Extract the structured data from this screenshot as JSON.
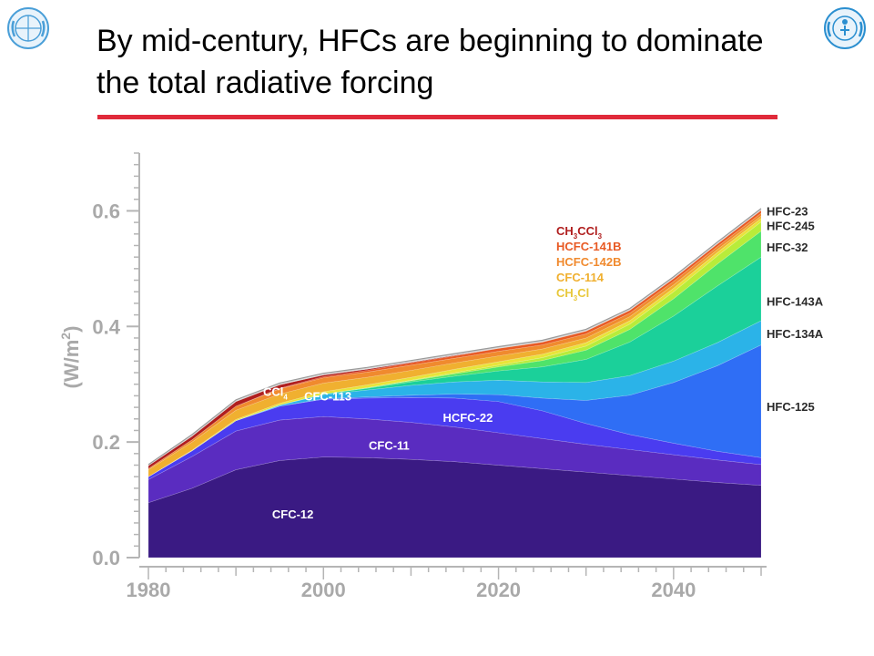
{
  "slide": {
    "title": "By mid-century, HFCs are beginning to dominate the total radiative forcing",
    "accent_color": "#e02a3a",
    "logos": {
      "left": "wmo-emblem-icon",
      "right": "unep-emblem-icon"
    }
  },
  "chart_data": {
    "type": "area",
    "stacked": true,
    "ylabel": "(W/m²)",
    "ylabel_base": "(W/m",
    "ylabel_sup": "2",
    "ylabel_tail": ")",
    "ylim": [
      0,
      0.7
    ],
    "xlim": [
      1980,
      2050
    ],
    "yticks": [
      0.0,
      0.2,
      0.4,
      0.6
    ],
    "ytick_labels": [
      "0.0",
      "0.2",
      "0.4",
      "0.6"
    ],
    "xticks": [
      1980,
      2000,
      2020,
      2040
    ],
    "xtick_labels": [
      "1980",
      "2000",
      "2020",
      "2040"
    ],
    "x": [
      1980,
      1985,
      1990,
      1995,
      2000,
      2005,
      2010,
      2015,
      2020,
      2025,
      2030,
      2035,
      2040,
      2045,
      2050
    ],
    "series": [
      {
        "name": "CFC-12",
        "color": "#3a1a83",
        "values": [
          0.095,
          0.12,
          0.152,
          0.168,
          0.174,
          0.173,
          0.17,
          0.166,
          0.16,
          0.154,
          0.148,
          0.142,
          0.136,
          0.13,
          0.125
        ]
      },
      {
        "name": "CFC-11",
        "color": "#5a2cc0",
        "values": [
          0.04,
          0.055,
          0.067,
          0.07,
          0.07,
          0.067,
          0.064,
          0.06,
          0.056,
          0.052,
          0.048,
          0.045,
          0.042,
          0.039,
          0.036
        ]
      },
      {
        "name": "HCFC-22",
        "color": "#4a3cf0",
        "values": [
          0.005,
          0.01,
          0.018,
          0.024,
          0.03,
          0.036,
          0.043,
          0.05,
          0.054,
          0.048,
          0.036,
          0.026,
          0.02,
          0.015,
          0.012
        ]
      },
      {
        "name": "HFC-125",
        "color": "#2f6ef5",
        "values": [
          0.0,
          0.0,
          0.0,
          0.0,
          0.001,
          0.002,
          0.004,
          0.007,
          0.012,
          0.022,
          0.04,
          0.068,
          0.105,
          0.148,
          0.195
        ]
      },
      {
        "name": "HFC-134A",
        "color": "#2bb3e8",
        "values": [
          0.0,
          0.0,
          0.0,
          0.002,
          0.007,
          0.012,
          0.017,
          0.021,
          0.025,
          0.028,
          0.031,
          0.034,
          0.037,
          0.04,
          0.042
        ]
      },
      {
        "name": "HFC-143A",
        "color": "#1bd09a",
        "values": [
          0.0,
          0.0,
          0.0,
          0.0,
          0.001,
          0.003,
          0.006,
          0.01,
          0.016,
          0.026,
          0.04,
          0.058,
          0.078,
          0.098,
          0.11
        ]
      },
      {
        "name": "HFC-32",
        "color": "#4fe36a",
        "values": [
          0.0,
          0.0,
          0.0,
          0.0,
          0.0,
          0.001,
          0.002,
          0.004,
          0.007,
          0.011,
          0.016,
          0.022,
          0.03,
          0.038,
          0.045
        ]
      },
      {
        "name": "HFC-245",
        "color": "#b9ec3a",
        "values": [
          0.0,
          0.0,
          0.0,
          0.0,
          0.0,
          0.0,
          0.001,
          0.002,
          0.003,
          0.005,
          0.007,
          0.009,
          0.012,
          0.014,
          0.016
        ]
      },
      {
        "name": "HFC-23",
        "color": "#e8e43a",
        "values": [
          0.0,
          0.001,
          0.002,
          0.003,
          0.004,
          0.005,
          0.005,
          0.006,
          0.006,
          0.006,
          0.006,
          0.006,
          0.006,
          0.006,
          0.006
        ]
      },
      {
        "name": "CCl4",
        "color": "#f0b030",
        "values": [
          0.012,
          0.014,
          0.016,
          0.016,
          0.015,
          0.013,
          0.012,
          0.011,
          0.01,
          0.009,
          0.008,
          0.007,
          0.006,
          0.005,
          0.004
        ]
      },
      {
        "name": "CFC-113",
        "color": "#f08a2e",
        "values": [
          0.002,
          0.004,
          0.007,
          0.009,
          0.009,
          0.009,
          0.009,
          0.008,
          0.008,
          0.007,
          0.007,
          0.006,
          0.006,
          0.005,
          0.005
        ]
      },
      {
        "name": "HCFC-141B",
        "color": "#e85a24",
        "values": [
          0.0,
          0.0,
          0.0,
          0.001,
          0.002,
          0.003,
          0.004,
          0.004,
          0.005,
          0.005,
          0.005,
          0.005,
          0.005,
          0.005,
          0.005
        ]
      },
      {
        "name": "CH3CCl3",
        "color": "#b01e1e",
        "values": [
          0.005,
          0.006,
          0.008,
          0.006,
          0.003,
          0.002,
          0.001,
          0.001,
          0.0,
          0.0,
          0.0,
          0.0,
          0.0,
          0.0,
          0.0
        ]
      },
      {
        "name": "CFC-114",
        "color": "#d9d9d9",
        "values": [
          0.002,
          0.003,
          0.003,
          0.003,
          0.003,
          0.003,
          0.003,
          0.003,
          0.003,
          0.003,
          0.003,
          0.003,
          0.003,
          0.003,
          0.003
        ]
      }
    ],
    "band_labels": [
      {
        "text": "CFC-12",
        "x": 1996.5,
        "y": 0.068,
        "color": "#ffffff"
      },
      {
        "text": "CFC-11",
        "x": 2007.5,
        "y": 0.187,
        "color": "#ffffff"
      },
      {
        "text": "HCFC-22",
        "x": 2016.5,
        "y": 0.235,
        "color": "#ffffff"
      },
      {
        "text": "CFC-113",
        "x": 2000.5,
        "y": 0.272,
        "color": "#ffffff"
      },
      {
        "text": "CCl",
        "sub": "4",
        "x": 1994.5,
        "y": 0.28,
        "color": "#ffffff"
      }
    ],
    "legend_stack": [
      {
        "text": "CH",
        "sub": "3",
        "text2": "CCl",
        "sub2": "3",
        "color": "#b01e1e"
      },
      {
        "text": "HCFC-141B",
        "color": "#e85a24"
      },
      {
        "text": "HCFC-142B",
        "color": "#f08a2e"
      },
      {
        "text": "CFC-114",
        "color": "#f0b030"
      },
      {
        "text": "CH",
        "sub": "3",
        "text2": "Cl",
        "color": "#e8c83a"
      }
    ],
    "right_labels": [
      {
        "text": "HFC-23",
        "value": 0.6
      },
      {
        "text": "HFC-245",
        "value": 0.575
      },
      {
        "text": "HFC-32",
        "value": 0.538
      },
      {
        "text": "HFC-143A",
        "value": 0.444
      },
      {
        "text": "HFC-134A",
        "value": 0.388
      },
      {
        "text": "HFC-125",
        "value": 0.262
      }
    ],
    "grid": false,
    "legend_placement": "right"
  }
}
